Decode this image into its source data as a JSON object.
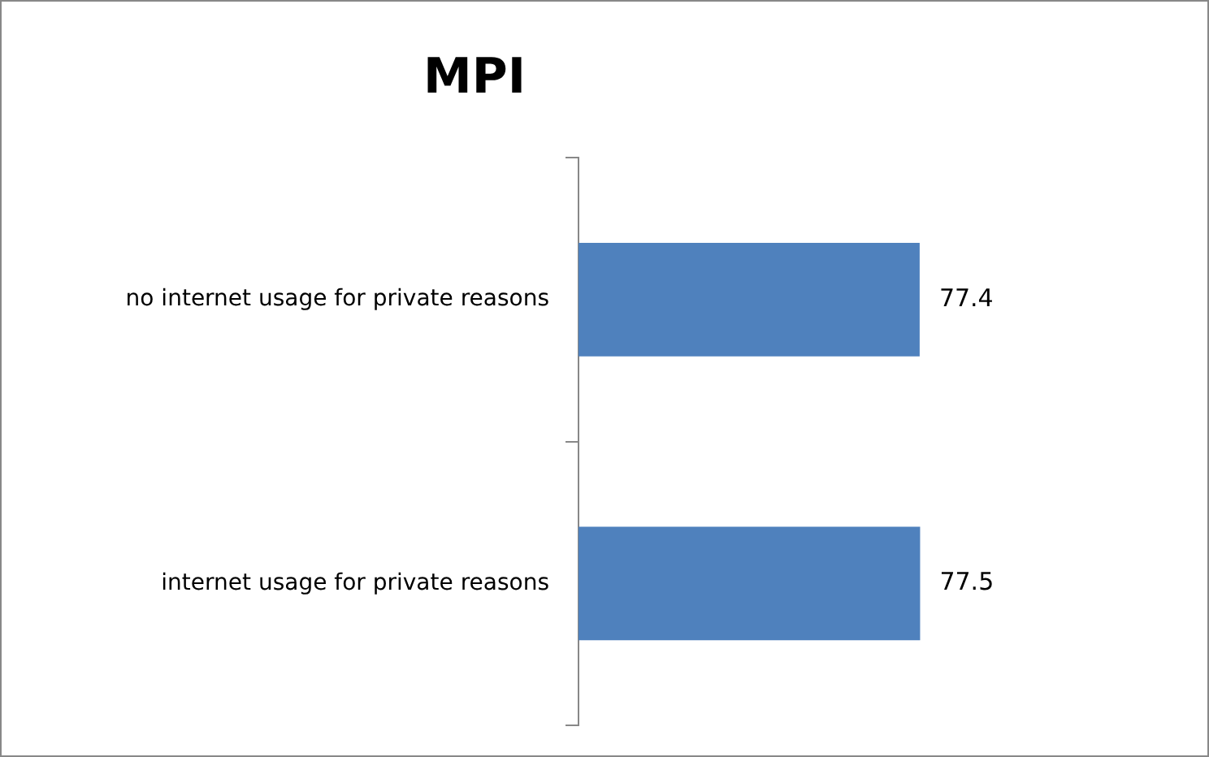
{
  "chart_data": {
    "type": "bar",
    "orientation": "horizontal",
    "title": "MPI",
    "categories": [
      "no internet usage for private reasons",
      "internet usage for private reasons"
    ],
    "values": [
      77.4,
      77.5
    ],
    "color": "#4f81bd",
    "data_labels": true,
    "tick_labels": "y",
    "legend": false
  }
}
